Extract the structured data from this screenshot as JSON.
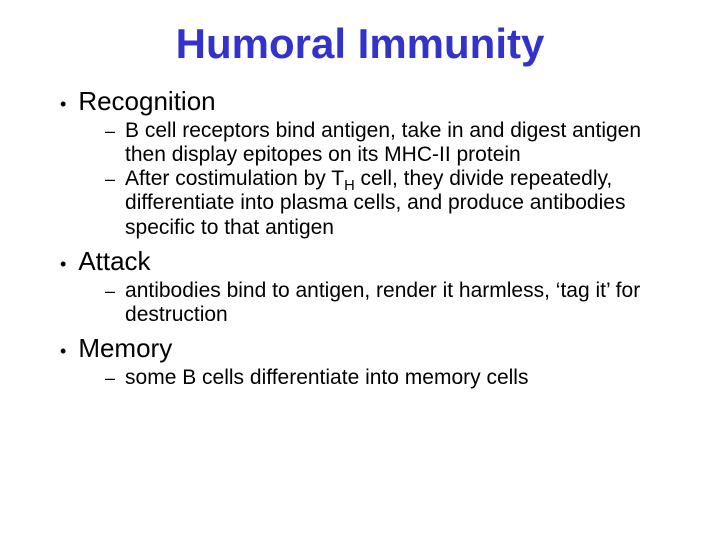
{
  "title": "Humoral Immunity",
  "title_color": "#3333cc",
  "background_color": "#ffffff",
  "text_color": "#000000",
  "font_family": "Comic Sans MS",
  "title_fontsize": 42,
  "level1_fontsize": 26,
  "level2_fontsize": 21,
  "sections": [
    {
      "heading": "Recognition",
      "items": [
        "B cell receptors bind antigen, take in and digest antigen then display epitopes on its MHC-II protein",
        "After costimulation by T<sub>H</sub> cell, they divide repeatedly, differentiate into plasma cells, and produce antibodies specific to that antigen"
      ]
    },
    {
      "heading": "Attack",
      "items": [
        "antibodies bind to antigen, render it harmless, ‘tag it’ for destruction"
      ]
    },
    {
      "heading": "Memory",
      "items": [
        "some B cells differentiate into memory cells"
      ]
    }
  ],
  "bullet_level1": "•",
  "bullet_level2": "–"
}
